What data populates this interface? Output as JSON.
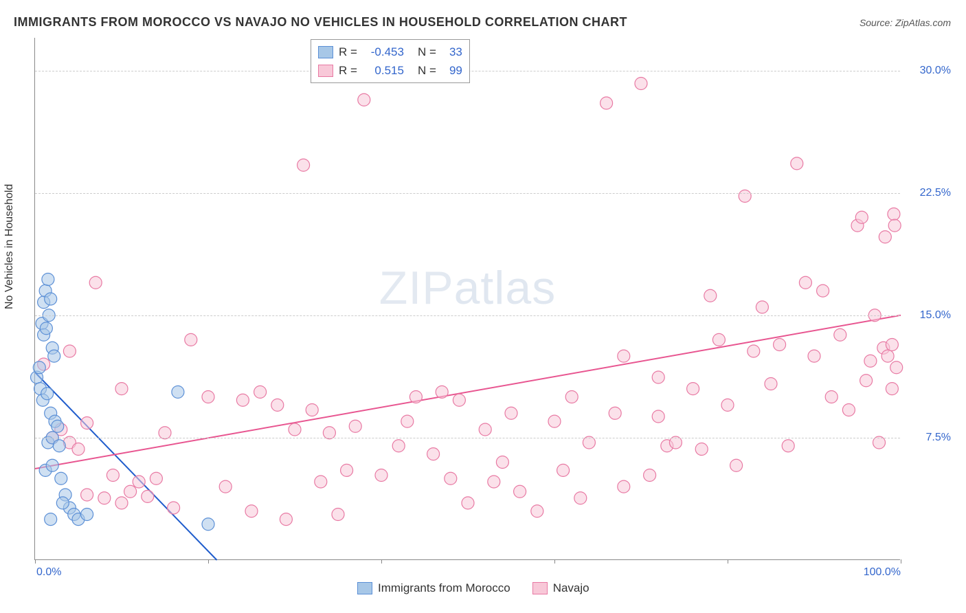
{
  "title": "IMMIGRANTS FROM MOROCCO VS NAVAJO NO VEHICLES IN HOUSEHOLD CORRELATION CHART",
  "source": "Source: ZipAtlas.com",
  "y_axis_label": "No Vehicles in Household",
  "watermark_bold": "ZIP",
  "watermark_thin": "atlas",
  "chart": {
    "type": "scatter",
    "xlim": [
      0,
      100
    ],
    "ylim": [
      0,
      32
    ],
    "y_ticks": [
      7.5,
      15.0,
      22.5,
      30.0
    ],
    "y_tick_labels": [
      "7.5%",
      "15.0%",
      "22.5%",
      "30.0%"
    ],
    "x_ticks": [
      0,
      20,
      40,
      60,
      80,
      100
    ],
    "x_tick_labels_shown": {
      "0": "0.0%",
      "100": "100.0%"
    },
    "background_color": "#ffffff",
    "grid_color": "#cccccc",
    "marker_radius": 9,
    "marker_stroke_width": 1.2,
    "trend_line_width": 2
  },
  "series": [
    {
      "name": "Immigrants from Morocco",
      "fill_color": "#a7c7e7",
      "stroke_color": "#5b8fd6",
      "line_color": "#1f5ccc",
      "R": "-0.453",
      "N": "33",
      "trend": {
        "x1": 0,
        "y1": 11.5,
        "x2": 21,
        "y2": 0
      },
      "points": [
        [
          0.2,
          11.2
        ],
        [
          0.5,
          11.8
        ],
        [
          0.8,
          14.5
        ],
        [
          1.0,
          15.8
        ],
        [
          1.2,
          16.5
        ],
        [
          1.5,
          17.2
        ],
        [
          1.0,
          13.8
        ],
        [
          1.3,
          14.2
        ],
        [
          1.6,
          15.0
        ],
        [
          1.8,
          16.0
        ],
        [
          2.0,
          13.0
        ],
        [
          2.2,
          12.5
        ],
        [
          0.6,
          10.5
        ],
        [
          0.9,
          9.8
        ],
        [
          1.4,
          10.2
        ],
        [
          1.8,
          9.0
        ],
        [
          2.3,
          8.5
        ],
        [
          2.6,
          8.2
        ],
        [
          1.5,
          7.2
        ],
        [
          2.0,
          7.5
        ],
        [
          2.8,
          7.0
        ],
        [
          1.2,
          5.5
        ],
        [
          2.0,
          5.8
        ],
        [
          3.0,
          5.0
        ],
        [
          3.5,
          4.0
        ],
        [
          4.0,
          3.2
        ],
        [
          4.5,
          2.8
        ],
        [
          5.0,
          2.5
        ],
        [
          6.0,
          2.8
        ],
        [
          3.2,
          3.5
        ],
        [
          16.5,
          10.3
        ],
        [
          20.0,
          2.2
        ],
        [
          1.8,
          2.5
        ]
      ]
    },
    {
      "name": "Navajo",
      "fill_color": "#f8c8d8",
      "stroke_color": "#e879a3",
      "line_color": "#e85590",
      "R": "0.515",
      "N": "99",
      "trend": {
        "x1": 0,
        "y1": 5.6,
        "x2": 100,
        "y2": 15.0
      },
      "points": [
        [
          1,
          12.0
        ],
        [
          2,
          7.5
        ],
        [
          3,
          8.0
        ],
        [
          4,
          7.2
        ],
        [
          5,
          6.8
        ],
        [
          6,
          8.4
        ],
        [
          8,
          3.8
        ],
        [
          10,
          3.5
        ],
        [
          11,
          4.2
        ],
        [
          12,
          4.8
        ],
        [
          13,
          3.9
        ],
        [
          7,
          17.0
        ],
        [
          10,
          10.5
        ],
        [
          14,
          5.0
        ],
        [
          16,
          3.2
        ],
        [
          18,
          13.5
        ],
        [
          20,
          10.0
        ],
        [
          22,
          4.5
        ],
        [
          24,
          9.8
        ],
        [
          25,
          3.0
        ],
        [
          26,
          10.3
        ],
        [
          28,
          9.5
        ],
        [
          29,
          2.5
        ],
        [
          30,
          8.0
        ],
        [
          31,
          24.2
        ],
        [
          32,
          9.2
        ],
        [
          33,
          4.8
        ],
        [
          34,
          7.8
        ],
        [
          35,
          2.8
        ],
        [
          37,
          8.2
        ],
        [
          38,
          28.2
        ],
        [
          40,
          5.2
        ],
        [
          42,
          7.0
        ],
        [
          43,
          8.5
        ],
        [
          44,
          10.0
        ],
        [
          47,
          10.3
        ],
        [
          48,
          5.0
        ],
        [
          49,
          9.8
        ],
        [
          50,
          3.5
        ],
        [
          52,
          8.0
        ],
        [
          53,
          4.8
        ],
        [
          54,
          6.0
        ],
        [
          56,
          4.2
        ],
        [
          58,
          3.0
        ],
        [
          60,
          8.5
        ],
        [
          61,
          5.5
        ],
        [
          62,
          10.0
        ],
        [
          63,
          3.8
        ],
        [
          64,
          7.2
        ],
        [
          66,
          28.0
        ],
        [
          67,
          9.0
        ],
        [
          68,
          4.5
        ],
        [
          70,
          29.2
        ],
        [
          71,
          5.2
        ],
        [
          72,
          8.8
        ],
        [
          73,
          7.0
        ],
        [
          74,
          7.2
        ],
        [
          76,
          10.5
        ],
        [
          77,
          6.8
        ],
        [
          78,
          16.2
        ],
        [
          79,
          13.5
        ],
        [
          80,
          9.5
        ],
        [
          81,
          5.8
        ],
        [
          82,
          22.3
        ],
        [
          83,
          12.8
        ],
        [
          84,
          15.5
        ],
        [
          85,
          10.8
        ],
        [
          86,
          13.2
        ],
        [
          87,
          7.0
        ],
        [
          88,
          24.3
        ],
        [
          89,
          17.0
        ],
        [
          90,
          12.5
        ],
        [
          91,
          16.5
        ],
        [
          92,
          10.0
        ],
        [
          93,
          13.8
        ],
        [
          94,
          9.2
        ],
        [
          95,
          20.5
        ],
        [
          95.5,
          21.0
        ],
        [
          96,
          11.0
        ],
        [
          96.5,
          12.2
        ],
        [
          97,
          15.0
        ],
        [
          97.5,
          7.2
        ],
        [
          98,
          13.0
        ],
        [
          98.2,
          19.8
        ],
        [
          98.5,
          12.5
        ],
        [
          99,
          10.5
        ],
        [
          99,
          13.2
        ],
        [
          99.2,
          21.2
        ],
        [
          99.3,
          20.5
        ],
        [
          99.5,
          11.8
        ],
        [
          72,
          11.2
        ],
        [
          68,
          12.5
        ],
        [
          55,
          9.0
        ],
        [
          46,
          6.5
        ],
        [
          36,
          5.5
        ],
        [
          15,
          7.8
        ],
        [
          6,
          4.0
        ],
        [
          4,
          12.8
        ],
        [
          9,
          5.2
        ]
      ]
    }
  ],
  "legend_bottom": [
    {
      "label": "Immigrants from Morocco",
      "fill": "#a7c7e7",
      "stroke": "#5b8fd6"
    },
    {
      "label": "Navajo",
      "fill": "#f8c8d8",
      "stroke": "#e879a3"
    }
  ]
}
